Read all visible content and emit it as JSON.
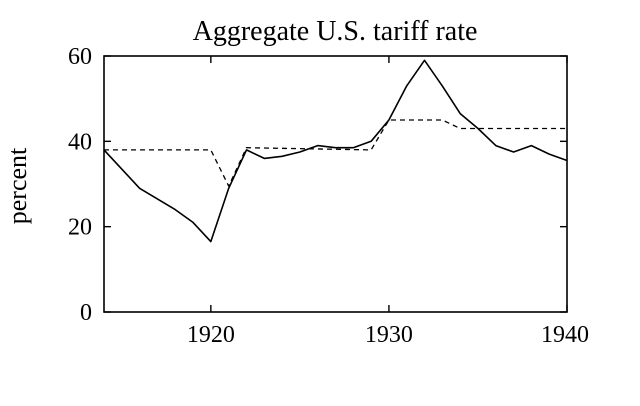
{
  "chart_data": {
    "type": "line",
    "title": "Aggregate U.S. tariff rate",
    "xlabel": "",
    "ylabel": "percent",
    "xlim": [
      1914,
      1940
    ],
    "ylim": [
      0,
      60
    ],
    "x_ticks": [
      1920,
      1930,
      1940
    ],
    "y_ticks": [
      0,
      20,
      40,
      60
    ],
    "x_tick_labels": [
      "1920",
      "1930",
      "1940"
    ],
    "y_tick_labels": [
      "0",
      "20",
      "40",
      "60"
    ],
    "grid": false,
    "legend": "none",
    "series": [
      {
        "style": "solid",
        "color": "#000000",
        "x": [
          1914,
          1916,
          1918,
          1919,
          1920,
          1921,
          1922,
          1923,
          1924,
          1925,
          1926,
          1927,
          1928,
          1929,
          1930,
          1931,
          1932,
          1933,
          1934,
          1935,
          1936,
          1937,
          1938,
          1939,
          1940
        ],
        "y": [
          38,
          29,
          24,
          21,
          16.5,
          29,
          38,
          36,
          36.5,
          37.5,
          39,
          38.5,
          38.5,
          40,
          45,
          53,
          59,
          53,
          46.5,
          43,
          39,
          37.5,
          39,
          37,
          35.5
        ]
      },
      {
        "style": "dashed",
        "color": "#000000",
        "x": [
          1914,
          1920,
          1921,
          1922,
          1929,
          1930,
          1933,
          1934,
          1940
        ],
        "y": [
          38,
          38,
          29.5,
          38.5,
          38,
          45,
          45,
          43,
          43
        ]
      }
    ]
  }
}
